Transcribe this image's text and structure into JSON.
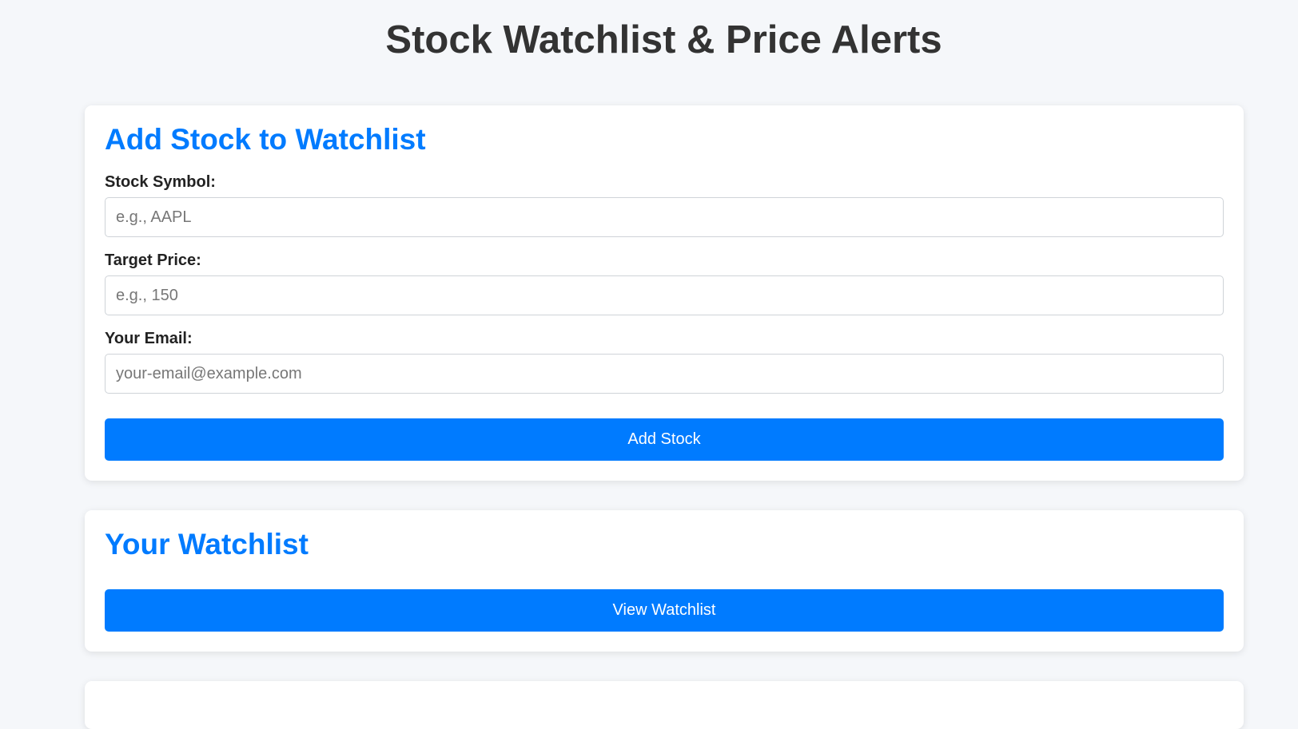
{
  "header": {
    "title": "Stock Watchlist & Price Alerts"
  },
  "add_stock": {
    "heading": "Add Stock to Watchlist",
    "symbol_label": "Stock Symbol:",
    "symbol_placeholder": "e.g., AAPL",
    "symbol_value": "",
    "price_label": "Target Price:",
    "price_placeholder": "e.g., 150",
    "price_value": "",
    "email_label": "Your Email:",
    "email_placeholder": "your-email@example.com",
    "email_value": "",
    "submit_label": "Add Stock"
  },
  "watchlist": {
    "heading": "Your Watchlist",
    "view_label": "View Watchlist"
  },
  "colors": {
    "accent": "#007bff",
    "background": "#f5f7fa",
    "text": "#333333"
  }
}
